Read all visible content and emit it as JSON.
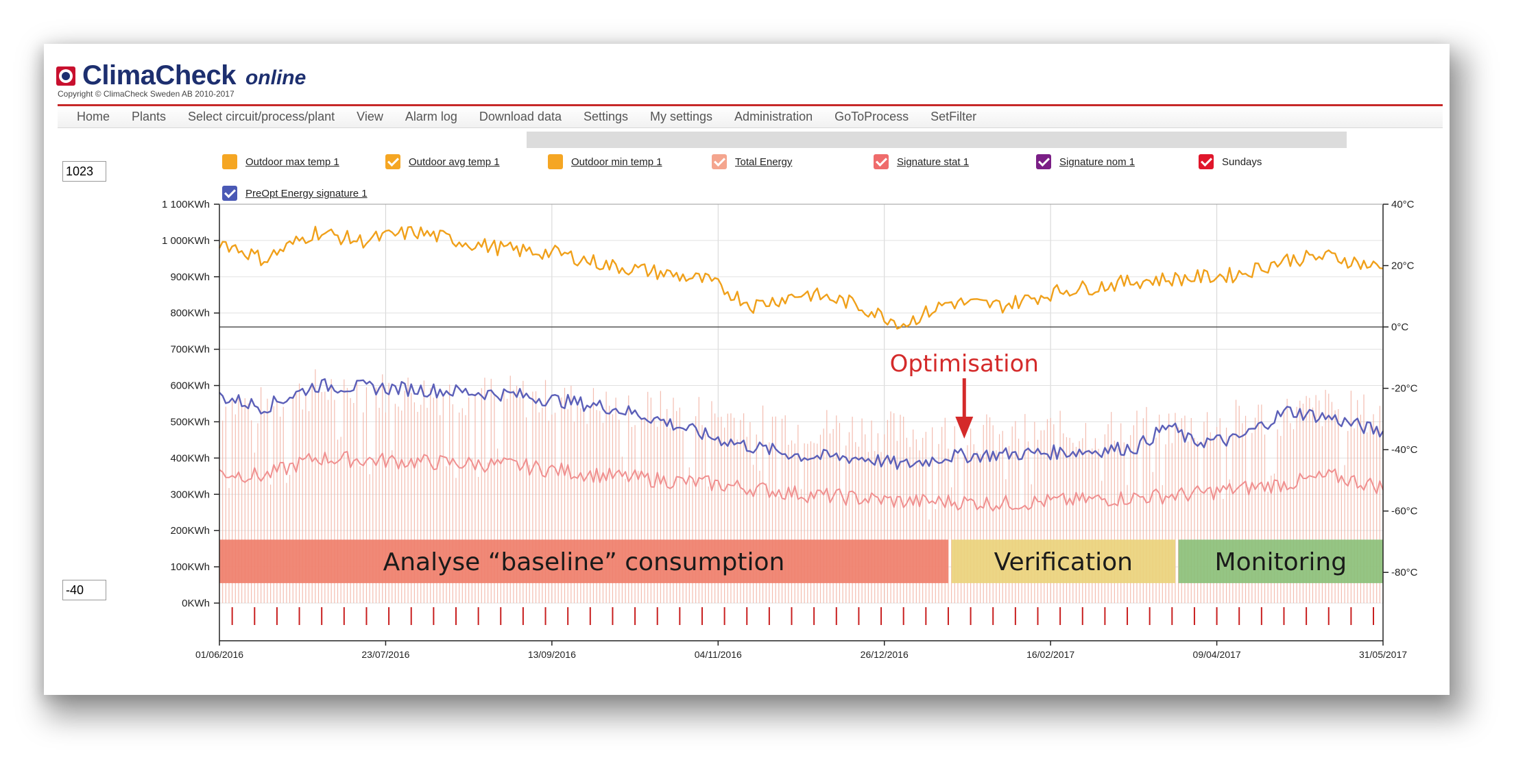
{
  "brand": {
    "name": "ClimaCheck",
    "suffix": "online",
    "copyright": "Copyright © ClimaCheck Sweden AB 2010-2017"
  },
  "nav": {
    "items": [
      "Home",
      "Plants",
      "Select circuit/process/plant",
      "View",
      "Alarm log",
      "Download data",
      "Settings",
      "My settings",
      "Administration",
      "GoToProcess",
      "SetFilter"
    ]
  },
  "inputs": {
    "ymax": "1023",
    "ymin": "-40"
  },
  "legend": [
    {
      "label": "Outdoor max temp 1",
      "color": "#f5a623",
      "checked": false,
      "link": true
    },
    {
      "label": "Outdoor avg temp 1",
      "color": "#f5a623",
      "checked": true,
      "link": true
    },
    {
      "label": "Outdoor min temp 1",
      "color": "#f5a623",
      "checked": false,
      "link": true
    },
    {
      "label": "Total Energy",
      "color": "#f4a58e",
      "checked": true,
      "link": true
    },
    {
      "label": "Signature stat 1",
      "color": "#ef6b6b",
      "checked": true,
      "link": true
    },
    {
      "label": "Signature nom 1",
      "color": "#7b1f86",
      "checked": true,
      "link": true
    },
    {
      "label": "Sundays",
      "color": "#e0162b",
      "checked": true,
      "link": false
    },
    {
      "label": "PreOpt Energy signature 1",
      "color": "#4a59b5",
      "checked": true,
      "link": true
    }
  ],
  "chart_data": {
    "type": "line",
    "x_range": [
      "01/06/2016",
      "31/05/2017"
    ],
    "x_ticks": [
      "01/06/2016",
      "23/07/2016",
      "13/09/2016",
      "04/11/2016",
      "26/12/2016",
      "16/02/2017",
      "09/04/2017",
      "31/05/2017"
    ],
    "y_left_ticks": [
      "1 100KWh",
      "1 000KWh",
      "900KWh",
      "800KWh",
      "700KWh",
      "600KWh",
      "500KWh",
      "400KWh",
      "300KWh",
      "200KWh",
      "100KWh",
      "0KWh"
    ],
    "y_left_range": [
      0,
      1100
    ],
    "y_right_ticks": [
      "40°C",
      "20°C",
      "0°C",
      "-20°C",
      "-40°C",
      "-60°C",
      "-80°C"
    ],
    "y_right_range": [
      -90,
      40
    ],
    "colors": {
      "outdoor_avg": "#f0a01a",
      "preopt": "#5b5fb8",
      "signature_stat": "#f08f8f",
      "total_energy_bars": "#f2b5a7",
      "sundays": "#c81e1e",
      "annotation": "#d42a2a"
    },
    "series": [
      {
        "key": "outdoor_avg",
        "axis": "right",
        "points": [
          [
            "01/06/2016",
            28
          ],
          [
            "15/06/2016",
            22
          ],
          [
            "01/07/2016",
            31
          ],
          [
            "15/07/2016",
            28
          ],
          [
            "01/08/2016",
            31
          ],
          [
            "20/08/2016",
            27
          ],
          [
            "01/09/2016",
            25
          ],
          [
            "15/09/2016",
            24
          ],
          [
            "01/10/2016",
            20
          ],
          [
            "15/10/2016",
            18
          ],
          [
            "01/11/2016",
            15
          ],
          [
            "15/11/2016",
            7
          ],
          [
            "01/12/2016",
            11
          ],
          [
            "15/12/2016",
            8
          ],
          [
            "01/01/2017",
            1
          ],
          [
            "15/01/2017",
            8
          ],
          [
            "01/02/2017",
            7
          ],
          [
            "20/02/2017",
            12
          ],
          [
            "01/03/2017",
            13
          ],
          [
            "15/03/2017",
            15
          ],
          [
            "01/04/2017",
            16
          ],
          [
            "15/04/2017",
            17
          ],
          [
            "01/05/2017",
            22
          ],
          [
            "15/05/2017",
            23
          ],
          [
            "31/05/2017",
            19
          ]
        ]
      },
      {
        "key": "preopt",
        "axis": "left",
        "points": [
          [
            "01/06/2016",
            570
          ],
          [
            "15/06/2016",
            540
          ],
          [
            "01/07/2016",
            600
          ],
          [
            "01/08/2016",
            590
          ],
          [
            "01/09/2016",
            575
          ],
          [
            "01/10/2016",
            540
          ],
          [
            "15/10/2016",
            510
          ],
          [
            "01/11/2016",
            460
          ],
          [
            "15/11/2016",
            430
          ],
          [
            "01/12/2016",
            405
          ],
          [
            "20/12/2016",
            400
          ],
          [
            "01/01/2017",
            380
          ],
          [
            "15/01/2017",
            405
          ],
          [
            "01/02/2017",
            410
          ],
          [
            "01/03/2017",
            420
          ],
          [
            "15/03/2017",
            430
          ],
          [
            "25/03/2017",
            490
          ],
          [
            "01/04/2017",
            445
          ],
          [
            "15/04/2017",
            450
          ],
          [
            "01/05/2017",
            530
          ],
          [
            "15/05/2017",
            510
          ],
          [
            "31/05/2017",
            470
          ]
        ]
      },
      {
        "key": "signature_stat",
        "axis": "left",
        "points": [
          [
            "01/06/2016",
            360
          ],
          [
            "15/06/2016",
            350
          ],
          [
            "01/07/2016",
            400
          ],
          [
            "01/08/2016",
            390
          ],
          [
            "01/09/2016",
            380
          ],
          [
            "01/10/2016",
            350
          ],
          [
            "01/11/2016",
            330
          ],
          [
            "01/12/2016",
            300
          ],
          [
            "01/01/2017",
            280
          ],
          [
            "15/01/2017",
            280
          ],
          [
            "01/02/2017",
            275
          ],
          [
            "01/03/2017",
            285
          ],
          [
            "01/04/2017",
            300
          ],
          [
            "01/05/2017",
            330
          ],
          [
            "15/05/2017",
            350
          ],
          [
            "31/05/2017",
            320
          ]
        ]
      }
    ],
    "phases": [
      {
        "label": "Analyse “baseline” consumption",
        "from": "01/06/2016",
        "to": "15/01/2017",
        "color": "#ef7f6b"
      },
      {
        "label": "Verification",
        "from": "16/01/2017",
        "to": "27/03/2017",
        "color": "#ead27c"
      },
      {
        "label": "Monitoring",
        "from": "28/03/2017",
        "to": "31/05/2017",
        "color": "#8cc07a"
      }
    ],
    "annotation": {
      "text": "Optimisation",
      "x": "20/01/2017"
    }
  }
}
